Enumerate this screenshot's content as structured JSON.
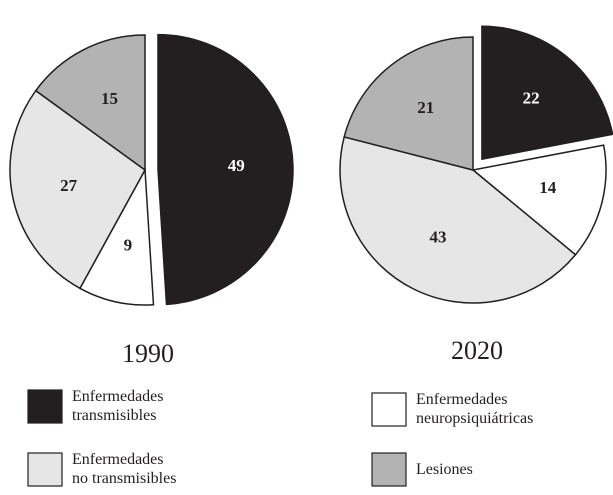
{
  "chart_data": [
    {
      "type": "pie",
      "title": "1990",
      "categories": [
        "Enfermedades\ntransmisibles",
        "Enfermedades\nneuropsiquiátricas",
        "Enfermedades\nno transmisibles",
        "Lesiones"
      ],
      "values": [
        49,
        9,
        27,
        15
      ],
      "colors": [
        "#231f20",
        "#ffffff",
        "#e6e6e6",
        "#b3b3b3"
      ],
      "explode": [
        true,
        false,
        false,
        false
      ]
    },
    {
      "type": "pie",
      "title": "2020",
      "categories": [
        "Enfermedades\ntransmisibles",
        "Enfermedades\nneuropsiquiátricas",
        "Enfermedades\nno transmisibles",
        "Lesiones"
      ],
      "values": [
        22,
        14,
        43,
        21
      ],
      "colors": [
        "#231f20",
        "#ffffff",
        "#e6e6e6",
        "#b3b3b3"
      ],
      "explode": [
        true,
        false,
        false,
        false
      ]
    }
  ]
}
